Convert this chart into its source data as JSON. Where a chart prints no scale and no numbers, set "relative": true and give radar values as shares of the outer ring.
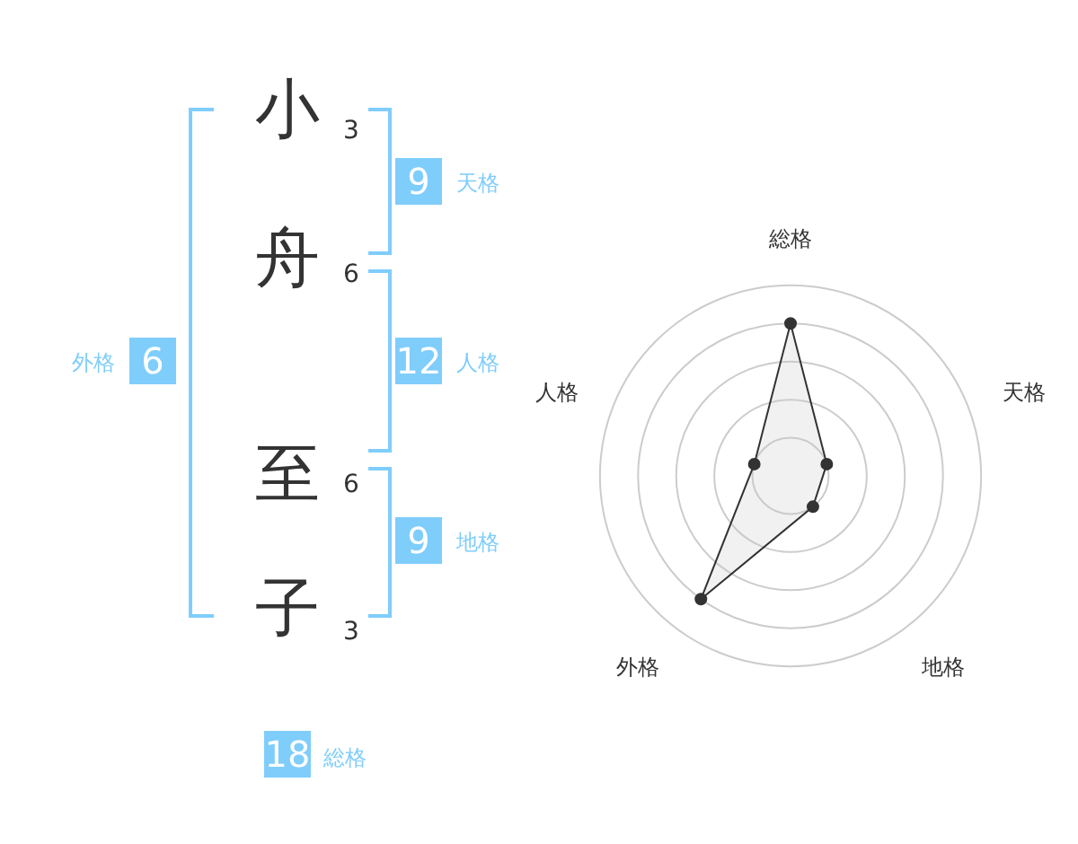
{
  "chart_data": [
    {
      "type": "other",
      "annotations": [
        "小",
        "3",
        "舟",
        "6",
        "至",
        "6",
        "子",
        "3",
        "9",
        "天格",
        "12",
        "人格",
        "9",
        "地格",
        "6",
        "外格",
        "18",
        "総格"
      ]
    },
    {
      "type": "radar",
      "relative": true,
      "categories": [
        "総格",
        "天格",
        "地格",
        "外格",
        "人格"
      ],
      "series": [
        {
          "color": "#333333",
          "values": [
            0.8,
            0.2,
            0.2,
            0.8,
            0.2
          ]
        }
      ],
      "marker": "circle",
      "grid": true,
      "legend": false
    }
  ]
}
